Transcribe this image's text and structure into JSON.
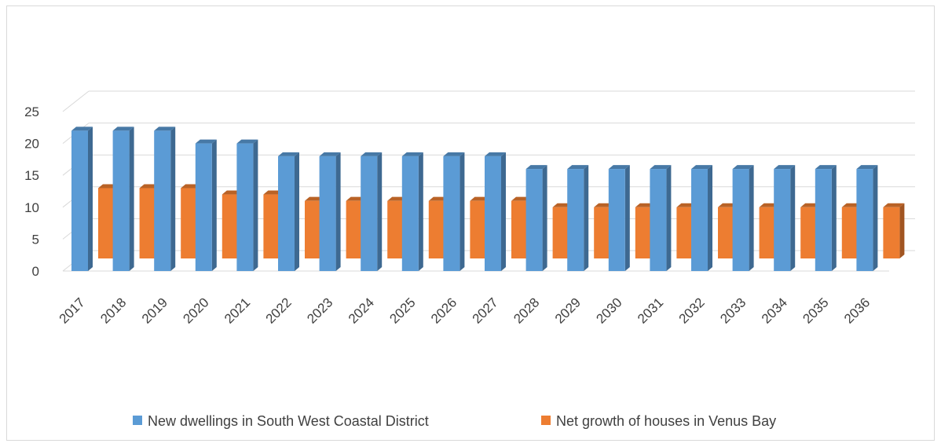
{
  "chart_data": {
    "type": "bar",
    "style": "3d-clustered-column",
    "categories": [
      "2017",
      "2018",
      "2019",
      "2020",
      "2021",
      "2022",
      "2023",
      "2024",
      "2025",
      "2026",
      "2027",
      "2028",
      "2029",
      "2030",
      "2031",
      "2032",
      "2033",
      "2034",
      "2035",
      "2036"
    ],
    "series": [
      {
        "name": "New dwellings in South West Coastal District",
        "color": "#5b9bd5",
        "values": [
          22,
          22,
          22,
          20,
          20,
          18,
          18,
          18,
          18,
          18,
          18,
          16,
          16,
          16,
          16,
          16,
          16,
          16,
          16,
          16
        ]
      },
      {
        "name": "Net growth of houses in Venus Bay",
        "color": "#ed7d31",
        "values": [
          13,
          13,
          13,
          12,
          12,
          11,
          11,
          11,
          11,
          11,
          11,
          10,
          10,
          10,
          10,
          10,
          10,
          10,
          10,
          10
        ]
      }
    ],
    "ylim": [
      0,
      25
    ],
    "yticks": [
      "0",
      "5",
      "10",
      "15",
      "20",
      "25"
    ],
    "grid": true,
    "legend": "bottom"
  }
}
